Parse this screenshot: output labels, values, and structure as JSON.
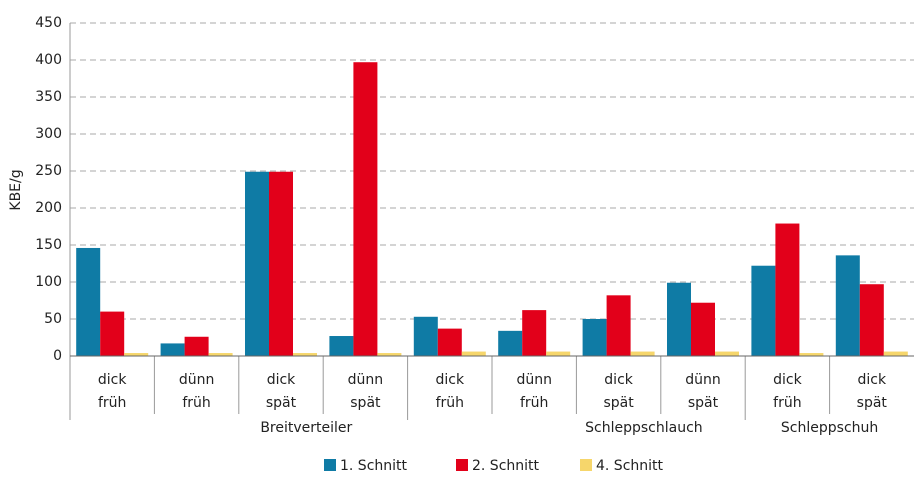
{
  "chart_data": {
    "type": "bar",
    "y_label": "KBE/g",
    "groups": [
      {
        "name": "Breitverteiler",
        "categories": [
          [
            "dick",
            "früh"
          ],
          [
            "dünn",
            "früh"
          ],
          [
            "dick",
            "spät"
          ],
          [
            "dünn",
            "spät"
          ]
        ]
      },
      {
        "name": "Schleppschlauch",
        "categories": [
          [
            "dick",
            "früh"
          ],
          [
            "dünn",
            "früh"
          ],
          [
            "dick",
            "spät"
          ],
          [
            "dünn",
            "spät"
          ]
        ]
      },
      {
        "name": "Schleppschuh",
        "categories": [
          [
            "dick",
            "früh"
          ],
          [
            "dick",
            "spät"
          ]
        ]
      }
    ],
    "series": [
      {
        "name": "1. Schnitt",
        "color": "#0f7ba5",
        "values": [
          146,
          17,
          249,
          27,
          53,
          34,
          50,
          99,
          122,
          136
        ]
      },
      {
        "name": "2. Schnitt",
        "color": "#e2001a",
        "values": [
          60,
          26,
          249,
          397,
          37,
          62,
          82,
          72,
          179,
          97
        ]
      },
      {
        "name": "4. Schnitt",
        "color": "#f6d66b",
        "values": [
          4,
          4,
          4,
          4,
          6,
          6,
          6,
          6,
          4,
          6
        ]
      }
    ],
    "ylim": [
      0,
      450
    ],
    "yticks": [
      0,
      50,
      100,
      150,
      200,
      250,
      300,
      350,
      400,
      450
    ],
    "grid": true
  }
}
